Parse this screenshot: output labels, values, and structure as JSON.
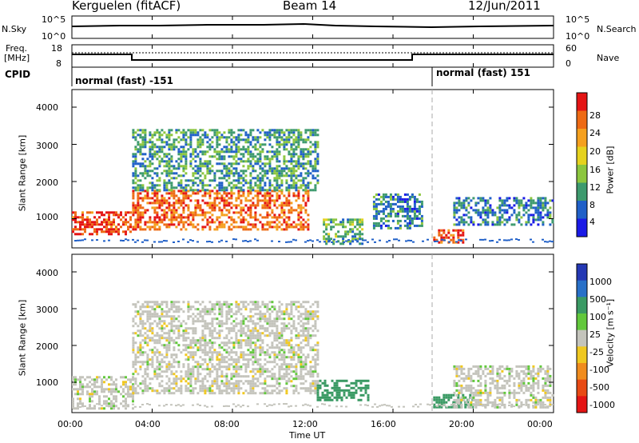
{
  "header": {
    "station": "Kerguelen (fitACF)",
    "beam": "Beam 14",
    "date": "12/Jun/2011"
  },
  "noise_panel": {
    "left_label": "N.Sky",
    "right_label": "N.Search",
    "left_ticks": [
      "10^5",
      "10^0"
    ],
    "right_ticks": [
      "10^5",
      "10^0"
    ]
  },
  "freq_panel": {
    "left_label_line1": "Freq.",
    "left_label_line2": "[MHz]",
    "right_label": "Nave",
    "left_ticks": [
      "18",
      "8"
    ],
    "right_ticks": [
      "60",
      "0"
    ]
  },
  "cpid_panel": {
    "label": "CPID",
    "segments": [
      {
        "start_hour": 0,
        "text": "normal (fast) -151"
      },
      {
        "start_hour": 18,
        "text": "normal (fast) 151"
      }
    ]
  },
  "x_axis": {
    "label": "Time UT",
    "ticks": [
      "00:00",
      "04:00",
      "08:00",
      "12:00",
      "16:00",
      "20:00",
      "00:00"
    ]
  },
  "power_panel": {
    "ylabel": "Slant Range [km]",
    "yticks": [
      "4000",
      "3000",
      "2000",
      "1000"
    ],
    "colorbar_label": "Power [dB]",
    "colorbar_ticks": [
      "28",
      "24",
      "20",
      "16",
      "12",
      "8",
      "4"
    ],
    "colors": [
      "#1a1ae6",
      "#2060c8",
      "#3d9a6e",
      "#8cc63e",
      "#e6d21e",
      "#f5a01e",
      "#ee6a14",
      "#e41414"
    ]
  },
  "velocity_panel": {
    "ylabel": "Slant Range [km]",
    "yticks": [
      "4000",
      "3000",
      "2000",
      "1000"
    ],
    "colorbar_label": "Velocity [m s⁻¹]",
    "colorbar_ticks": [
      "1000",
      "500",
      "100",
      "25",
      "-25",
      "-100",
      "-500",
      "-1000"
    ],
    "colors": [
      "#2438b4",
      "#2870c8",
      "#3a9a64",
      "#62c83c",
      "#c4c4bc",
      "#f0c820",
      "#f08c1e",
      "#e84a14",
      "#e41414"
    ]
  },
  "chart_data": [
    {
      "type": "heatmap",
      "name": "Power",
      "xlabel": "Time UT",
      "ylabel": "Slant Range [km]",
      "xlim": [
        0,
        24
      ],
      "ylim": [
        180,
        4600
      ],
      "colorbar": {
        "label": "Power [dB]",
        "ticks": [
          4,
          8,
          12,
          16,
          20,
          24,
          28
        ]
      },
      "regions": [
        {
          "t0": 0.0,
          "t1": 2.9,
          "r0": 550,
          "r1": 1200,
          "value": 28
        },
        {
          "t0": 3.0,
          "t1": 11.8,
          "r0": 700,
          "r1": 1800,
          "value": 26
        },
        {
          "t0": 3.0,
          "t1": 12.2,
          "r0": 1800,
          "r1": 3500,
          "value": 10
        },
        {
          "t0": 12.5,
          "t1": 14.5,
          "r0": 300,
          "r1": 1000,
          "value": 12
        },
        {
          "t0": 15.0,
          "t1": 17.5,
          "r0": 700,
          "r1": 1700,
          "value": 8
        },
        {
          "t0": 18.0,
          "t1": 19.5,
          "r0": 300,
          "r1": 700,
          "value": 28
        },
        {
          "t0": 19.0,
          "t1": 24.0,
          "r0": 800,
          "r1": 1600,
          "value": 8
        }
      ]
    },
    {
      "type": "heatmap",
      "name": "Velocity",
      "xlabel": "Time UT",
      "ylabel": "Slant Range [km]",
      "xlim": [
        0,
        24
      ],
      "ylim": [
        180,
        4600
      ],
      "colorbar": {
        "label": "Velocity [m s⁻¹]",
        "ticks": [
          -1000,
          -500,
          -100,
          -25,
          25,
          100,
          500,
          1000
        ]
      },
      "regions": [
        {
          "t0": 0.0,
          "t1": 3.0,
          "r0": 300,
          "r1": 1200,
          "value": 0
        },
        {
          "t0": 3.0,
          "t1": 12.2,
          "r0": 700,
          "r1": 3300,
          "value": 0
        },
        {
          "t0": 12.2,
          "t1": 14.8,
          "r0": 500,
          "r1": 1100,
          "value": 150
        },
        {
          "t0": 18.0,
          "t1": 20.0,
          "r0": 300,
          "r1": 700,
          "value": 150
        },
        {
          "t0": 19.0,
          "t1": 24.0,
          "r0": 300,
          "r1": 1500,
          "value": 0
        }
      ]
    }
  ]
}
